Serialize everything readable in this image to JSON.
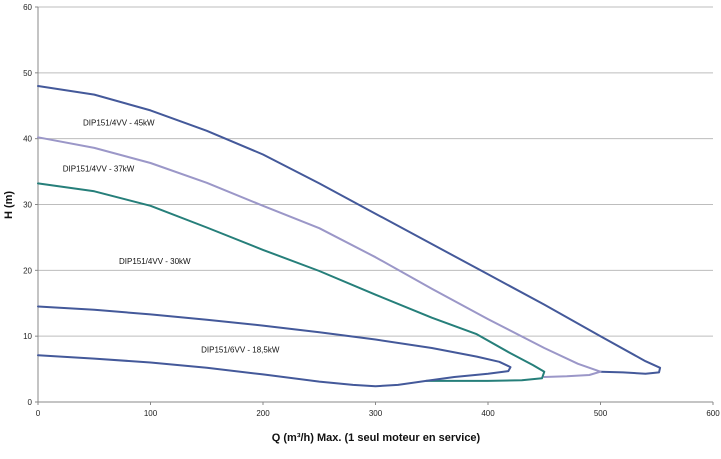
{
  "chart_data": {
    "type": "line",
    "title": "",
    "xlabel": "Q (m³/h) Max. (1 seul moteur en service)",
    "ylabel": "H (m)",
    "xlim": [
      0,
      600
    ],
    "ylim": [
      0,
      60
    ],
    "xticks": [
      "0",
      "100",
      "200",
      "300",
      "400",
      "500",
      "600"
    ],
    "yticks": [
      "0",
      "10",
      "20",
      "30",
      "40",
      "50",
      "60"
    ],
    "grid": "horizontal",
    "legend": "none",
    "series": [
      {
        "name": "DIP151/4VV - 45kW",
        "color": "#44599a",
        "points": [
          [
            0,
            48
          ],
          [
            50,
            46.7
          ],
          [
            100,
            44.3
          ],
          [
            150,
            41.2
          ],
          [
            200,
            37.6
          ],
          [
            250,
            33.2
          ],
          [
            300,
            28.6
          ],
          [
            350,
            24
          ],
          [
            400,
            19.4
          ],
          [
            450,
            14.8
          ],
          [
            500,
            10
          ],
          [
            540,
            6.2
          ],
          [
            553,
            5.2
          ],
          [
            552,
            4.5
          ],
          [
            540,
            4.3
          ],
          [
            520,
            4.5
          ],
          [
            500,
            4.6
          ]
        ]
      },
      {
        "name": "DIP151/4VV - 37kW",
        "color": "#9b97c8",
        "points": [
          [
            0,
            40.2
          ],
          [
            50,
            38.6
          ],
          [
            100,
            36.3
          ],
          [
            150,
            33.3
          ],
          [
            200,
            29.8
          ],
          [
            250,
            26.4
          ],
          [
            300,
            22
          ],
          [
            350,
            17.2
          ],
          [
            400,
            12.6
          ],
          [
            450,
            8.2
          ],
          [
            480,
            5.8
          ],
          [
            500,
            4.6
          ],
          [
            490,
            4.1
          ],
          [
            470,
            3.9
          ],
          [
            450,
            3.8
          ]
        ]
      },
      {
        "name": "DIP151/4VV - 30kW",
        "color": "#267f7a",
        "points": [
          [
            0,
            33.2
          ],
          [
            50,
            32
          ],
          [
            100,
            29.8
          ],
          [
            150,
            26.5
          ],
          [
            200,
            23.1
          ],
          [
            250,
            19.9
          ],
          [
            300,
            16.3
          ],
          [
            350,
            12.8
          ],
          [
            390,
            10.3
          ],
          [
            420,
            7.4
          ],
          [
            440,
            5.6
          ],
          [
            450,
            4.6
          ],
          [
            448,
            3.6
          ],
          [
            430,
            3.3
          ],
          [
            400,
            3.2
          ],
          [
            370,
            3.2
          ],
          [
            345,
            3.2
          ]
        ]
      },
      {
        "name": "DIP151/6VV - 18,5kW",
        "color": "#44599a",
        "points": [
          [
            0,
            14.5
          ],
          [
            50,
            14
          ],
          [
            100,
            13.3
          ],
          [
            150,
            12.5
          ],
          [
            200,
            11.6
          ],
          [
            250,
            10.6
          ],
          [
            300,
            9.5
          ],
          [
            350,
            8.2
          ],
          [
            390,
            6.9
          ],
          [
            410,
            6.1
          ],
          [
            420,
            5.3
          ],
          [
            418,
            4.7
          ],
          [
            400,
            4.3
          ],
          [
            370,
            3.8
          ],
          [
            345,
            3.2
          ],
          [
            320,
            2.6
          ],
          [
            300,
            2.4
          ],
          [
            280,
            2.6
          ],
          [
            250,
            3.1
          ],
          [
            200,
            4.2
          ],
          [
            150,
            5.2
          ],
          [
            100,
            6
          ],
          [
            50,
            6.6
          ],
          [
            0,
            7.1
          ]
        ]
      }
    ],
    "annotations": [
      {
        "text": "DIP151/4VV - 45kW",
        "x": 40,
        "y": 42
      },
      {
        "text": "DIP151/4VV - 37kW",
        "x": 22,
        "y": 35
      },
      {
        "text": "DIP151/4VV - 30kW",
        "x": 72,
        "y": 21
      },
      {
        "text": "DIP151/6VV - 18,5kW",
        "x": 145,
        "y": 7.5
      }
    ]
  }
}
